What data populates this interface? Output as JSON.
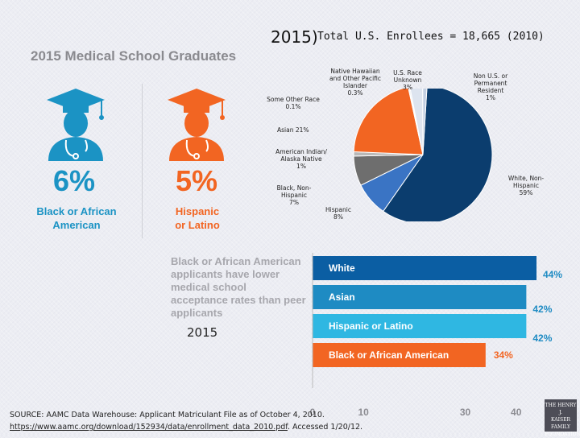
{
  "header": {
    "title": "2015)",
    "subtitle": "Total U.S. Enrollees = 18,665 (2010)"
  },
  "graduates": {
    "heading": "2015 Medical School Graduates",
    "black": {
      "percent": "6%",
      "label_line1": "Black or African",
      "label_line2": "American"
    },
    "hispanic": {
      "percent": "5%",
      "label_line1": "Hispanic",
      "label_line2": "or Latino"
    }
  },
  "callout": "Black or African American applicants have lower medical school acceptance rates than peer applicants",
  "year_label": "2015",
  "source": {
    "line1": "SOURCE: AAMC Data Warehouse: Applicant Matriculant File as of October 4, 2010.",
    "link": "https://www.aamc.org/download/152934/data/enrollment_data_2010.pdf",
    "accessed": ". Accessed 1/20/12."
  },
  "logo_lines": [
    "THE HENRY J.",
    "KAISER",
    "FAMILY",
    "FOUNDATION"
  ],
  "colors": {
    "blue": "#1b93c4",
    "orange": "#f26522",
    "navy": "#0b3d6e"
  },
  "chart_data": [
    {
      "type": "pie",
      "title": "Total U.S. Enrollees = 18,665 (2010)",
      "slices": [
        {
          "label": "White, Non-Hispanic",
          "value_label": "59%",
          "value": 59,
          "color": "#0b3d6e"
        },
        {
          "label": "Hispanic",
          "value_label": "8%",
          "value": 8,
          "color": "#3a74c4"
        },
        {
          "label": "Black, Non-Hispanic",
          "value_label": "7%",
          "value": 7,
          "color": "#6e6e6e"
        },
        {
          "label": "American Indian/ Alaska Native",
          "value_label": "1%",
          "value": 1,
          "color": "#b8b8b8"
        },
        {
          "label": "Asian",
          "value_label": "21%",
          "value": 21,
          "color": "#f26522"
        },
        {
          "label": "Some Other Race",
          "value_label": "0.1%",
          "value": 0.1,
          "color": "#d5dbe6"
        },
        {
          "label": "Native Hawaiian and Other Pacific Islander",
          "value_label": "0.3%",
          "value": 0.3,
          "color": "#e6e9ee"
        },
        {
          "label": "U.S. Race Unknown",
          "value_label": "3%",
          "value": 3,
          "color": "#dde4ef"
        },
        {
          "label": "Non U.S. or Permanent Resident",
          "value_label": "1%",
          "value": 1,
          "color": "#c3cfe2"
        }
      ]
    },
    {
      "type": "bar",
      "orientation": "horizontal",
      "categories": [
        "White",
        "Asian",
        "Hispanic or Latino",
        "Black or African American"
      ],
      "values": [
        44,
        42,
        42,
        34
      ],
      "value_labels": [
        "44%",
        "42%",
        "42%",
        "34%"
      ],
      "colors": [
        "#0b5ea3",
        "#1e8bc3",
        "#2fb7e2",
        "#f26522"
      ],
      "xlim": [
        0,
        44
      ],
      "xticks": [
        "0",
        "10",
        "30",
        "40"
      ],
      "tick_values": [
        0,
        10,
        30,
        40
      ]
    }
  ]
}
